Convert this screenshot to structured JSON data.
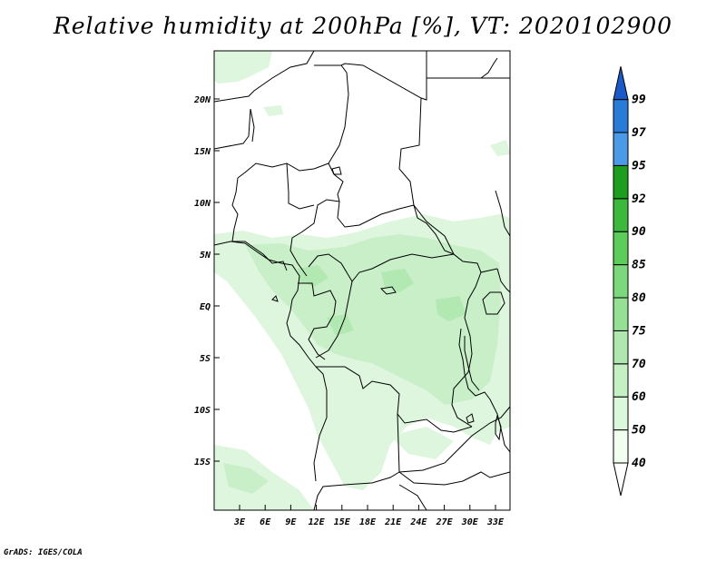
{
  "title": "Relative humidity at 200hPa [%], VT: 2020102900",
  "credit": "GrADS: IGES/COLA",
  "map": {
    "lat_labels": [
      "20N",
      "15N",
      "10N",
      "5N",
      "EQ",
      "5S",
      "10S",
      "15S"
    ],
    "lon_labels": [
      "3E",
      "6E",
      "9E",
      "12E",
      "15E",
      "18E",
      "21E",
      "24E",
      "27E",
      "30E",
      "33E"
    ]
  },
  "colorbar": {
    "levels": [
      "40",
      "50",
      "60",
      "70",
      "75",
      "80",
      "85",
      "90",
      "92",
      "95",
      "97",
      "99"
    ],
    "colors": [
      "#f0fff0",
      "#dcf8dc",
      "#c4f0c4",
      "#aee8ae",
      "#96e096",
      "#7cd87c",
      "#5ccc5c",
      "#3cb83c",
      "#1e9e1e",
      "#4a9ae8",
      "#2a7ad8",
      "#1a5ac8"
    ]
  }
}
